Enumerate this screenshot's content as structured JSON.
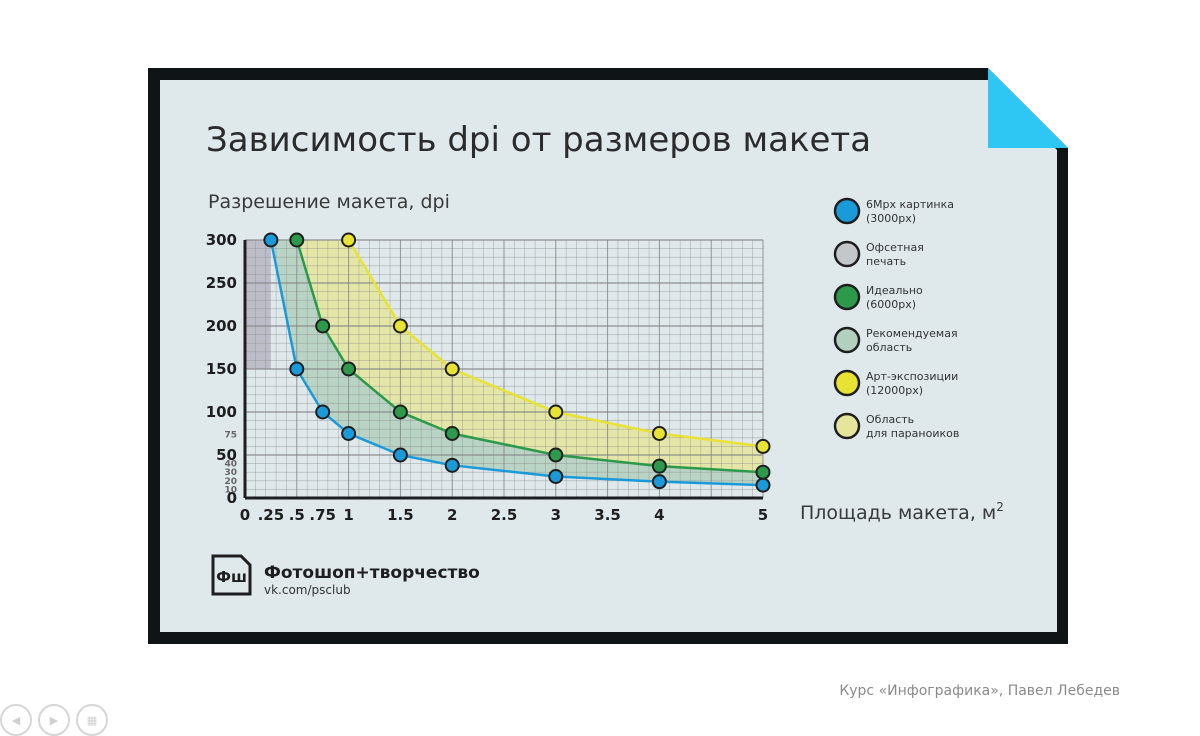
{
  "page": {
    "footer_credit": "Курс «Инфографика», Павел Лебедев"
  },
  "logo": {
    "mark": "Фш",
    "name": "Фотошоп+творчество",
    "url": "vk.com/psclub"
  },
  "colors": {
    "card_bg": "#dfe9ec",
    "frame": "#0f1416",
    "corner_fold": "#2ec6f3",
    "blue": "#1a9ad9",
    "gray_point": "#c3c7c9",
    "green": "#2c9a4a",
    "green_area": "#b3d0be",
    "yellow": "#e8e233",
    "yellow_area": "#e5e59c",
    "offset_area": "#b7b5c3",
    "grid": "#8a8a8a"
  },
  "chart_data": {
    "type": "line",
    "title": "Зависимость dpi от размеров макета",
    "ylabel": "Разрешение макета, dpi",
    "xlabel": "Площадь макета, м",
    "xlabel_sup": "2",
    "xlim": [
      0,
      5
    ],
    "ylim": [
      0,
      300
    ],
    "x_ticks": [
      {
        "v": 0,
        "label": "0"
      },
      {
        "v": 0.25,
        "label": ".25"
      },
      {
        "v": 0.5,
        "label": ".5"
      },
      {
        "v": 0.75,
        "label": ".75"
      },
      {
        "v": 1,
        "label": "1"
      },
      {
        "v": 1.5,
        "label": "1.5"
      },
      {
        "v": 2,
        "label": "2"
      },
      {
        "v": 2.5,
        "label": "2.5"
      },
      {
        "v": 3,
        "label": "3"
      },
      {
        "v": 3.5,
        "label": "3.5"
      },
      {
        "v": 4,
        "label": "4"
      },
      {
        "v": 5,
        "label": "5"
      }
    ],
    "y_ticks_major": [
      {
        "v": 0,
        "label": "0"
      },
      {
        "v": 50,
        "label": "50"
      },
      {
        "v": 100,
        "label": "100"
      },
      {
        "v": 150,
        "label": "150"
      },
      {
        "v": 200,
        "label": "200"
      },
      {
        "v": 250,
        "label": "250"
      },
      {
        "v": 300,
        "label": "300"
      }
    ],
    "y_ticks_minor": [
      {
        "v": 10,
        "label": "10"
      },
      {
        "v": 20,
        "label": "20"
      },
      {
        "v": 30,
        "label": "30"
      },
      {
        "v": 40,
        "label": "40"
      },
      {
        "v": 75,
        "label": "75"
      }
    ],
    "grid": true,
    "legend_position": "right",
    "series": [
      {
        "name": "6Мрх картинка (3000px)",
        "color_key": "blue",
        "x": [
          0.25,
          0.5,
          0.75,
          1,
          1.5,
          2,
          3,
          4,
          5
        ],
        "y": [
          300,
          150,
          100,
          75,
          50,
          38,
          25,
          19,
          15
        ]
      },
      {
        "name": "Идеально (6000px)",
        "color_key": "green",
        "x": [
          0.5,
          0.75,
          1,
          1.5,
          2,
          3,
          4,
          5
        ],
        "y": [
          300,
          200,
          150,
          100,
          75,
          50,
          37,
          30
        ]
      },
      {
        "name": "Арт-экспозиции (12000px)",
        "color_key": "yellow",
        "x": [
          1,
          1.5,
          2,
          3,
          4,
          5
        ],
        "y": [
          300,
          200,
          150,
          100,
          75,
          60
        ]
      }
    ],
    "areas": [
      {
        "name": "Офсетная печать",
        "color_key": "offset_area",
        "x_range": [
          0,
          0.25
        ],
        "y_range": [
          150,
          300
        ]
      },
      {
        "name": "Рекомендуемая область",
        "color_key": "green_area",
        "between": [
          "blue",
          "green"
        ]
      },
      {
        "name": "Область для параноиков",
        "color_key": "yellow_area",
        "between": [
          "green",
          "yellow"
        ]
      }
    ],
    "legend": [
      {
        "line1": "6Мрх картинка",
        "line2": "(3000px)",
        "color_key": "blue"
      },
      {
        "line1": "Офсетная",
        "line2": "печать",
        "color_key": "gray_point"
      },
      {
        "line1": "Идеально",
        "line2": "(6000px)",
        "color_key": "green"
      },
      {
        "line1": "Рекомендуемая",
        "line2": "область",
        "color_key": "green_area"
      },
      {
        "line1": "Арт-экспозиции",
        "line2": "(12000px)",
        "color_key": "yellow"
      },
      {
        "line1": "Область",
        "line2": "для параноиков",
        "color_key": "yellow_area"
      }
    ]
  }
}
